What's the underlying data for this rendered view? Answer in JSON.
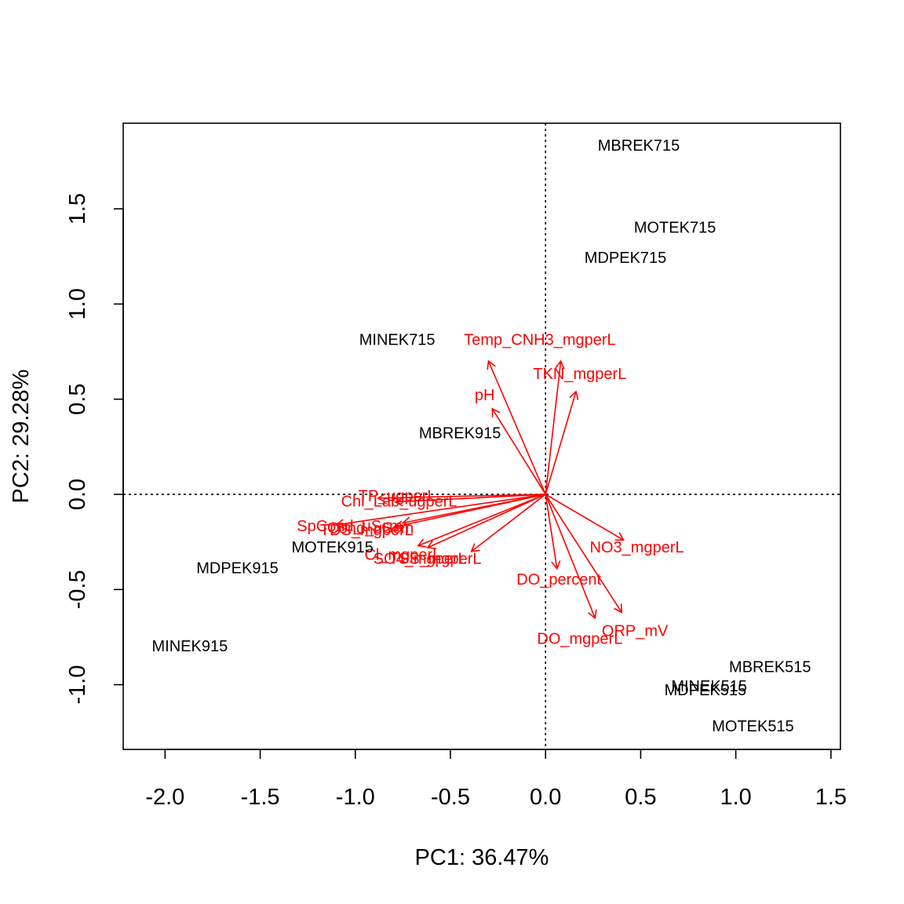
{
  "chart_data": {
    "type": "scatter",
    "subtype": "pca-biplot",
    "title": "",
    "xlabel": "PC1: 36.47%",
    "ylabel": "PC2: 29.28%",
    "xlim": [
      -2.22,
      1.55
    ],
    "ylim": [
      -1.34,
      1.95
    ],
    "x_ticks": [
      {
        "value": -2.0,
        "label": "-2.0"
      },
      {
        "value": -1.5,
        "label": "-1.5"
      },
      {
        "value": -1.0,
        "label": "-1.0"
      },
      {
        "value": -0.5,
        "label": "-0.5"
      },
      {
        "value": 0.0,
        "label": "0.0"
      },
      {
        "value": 0.5,
        "label": "0.5"
      },
      {
        "value": 1.0,
        "label": "1.0"
      },
      {
        "value": 1.5,
        "label": "1.5"
      }
    ],
    "y_ticks": [
      {
        "value": -1.0,
        "label": "-1.0"
      },
      {
        "value": -0.5,
        "label": "-0.5"
      },
      {
        "value": 0.0,
        "label": "0.0"
      },
      {
        "value": 0.5,
        "label": "0.5"
      },
      {
        "value": 1.0,
        "label": "1.0"
      },
      {
        "value": 1.5,
        "label": "1.5"
      }
    ],
    "reference_lines": {
      "x": 0.0,
      "y": 0.0,
      "style": "dotted"
    },
    "grid": false,
    "observations": [
      {
        "name": "MBREK715",
        "x": 0.49,
        "y": 1.83
      },
      {
        "name": "MOTEK715",
        "x": 0.68,
        "y": 1.4
      },
      {
        "name": "MDPEK715",
        "x": 0.42,
        "y": 1.24
      },
      {
        "name": "MINEK715",
        "x": -0.78,
        "y": 0.81
      },
      {
        "name": "MBREK915",
        "x": -0.45,
        "y": 0.32
      },
      {
        "name": "MOTEK915",
        "x": -1.12,
        "y": -0.28
      },
      {
        "name": "MDPEK915",
        "x": -1.62,
        "y": -0.39
      },
      {
        "name": "MINEK915",
        "x": -1.87,
        "y": -0.8
      },
      {
        "name": "MBREK515",
        "x": 1.18,
        "y": -0.91
      },
      {
        "name": "MINEK515",
        "x": 0.86,
        "y": -1.01
      },
      {
        "name": "MDPEK515",
        "x": 0.84,
        "y": -1.03
      },
      {
        "name": "MOTEK515",
        "x": 1.09,
        "y": -1.22
      }
    ],
    "loadings": [
      {
        "name": "Temp_C",
        "x": -0.3,
        "y": 0.7
      },
      {
        "name": "NH3_mgperL",
        "x": 0.08,
        "y": 0.7
      },
      {
        "name": "TKN_mgperL",
        "x": 0.16,
        "y": 0.54
      },
      {
        "name": "pH",
        "x": -0.28,
        "y": 0.45
      },
      {
        "name": "TP_ugperL",
        "x": -0.88,
        "y": -0.02
      },
      {
        "name": "Chl_Lab_ugperL",
        "x": -0.79,
        "y": -0.04
      },
      {
        "name": "SpCond_uScm",
        "x": -1.1,
        "y": -0.16
      },
      {
        "name": "Cond_uScm",
        "x": -0.75,
        "y": -0.15
      },
      {
        "name": "TDS_mgperL",
        "x": -0.79,
        "y": -0.17
      },
      {
        "name": "Cl_mgperL",
        "x": -0.67,
        "y": -0.27
      },
      {
        "name": "SO4_mgperL",
        "x": -0.62,
        "y": -0.28
      },
      {
        "name": "TSS_mgperL",
        "x": -0.39,
        "y": -0.3
      },
      {
        "name": "NO3_mgperL",
        "x": 0.41,
        "y": -0.24
      },
      {
        "name": "DO_percent",
        "x": 0.06,
        "y": -0.39
      },
      {
        "name": "DO_mgperL",
        "x": 0.26,
        "y": -0.65
      },
      {
        "name": "ORP_mV",
        "x": 0.4,
        "y": -0.62
      }
    ],
    "loading_label_text": [
      {
        "text": "Temp_CNH3_mgperL",
        "x": -0.03,
        "y": 0.81
      },
      {
        "text": "TKN_mgperL",
        "x": 0.18,
        "y": 0.63
      },
      {
        "text": "pH",
        "x": -0.32,
        "y": 0.52
      },
      {
        "text": "TP_ugperL",
        "x": -0.78,
        "y": -0.01
      },
      {
        "text": "Chl_Lab_ugperL",
        "x": -0.77,
        "y": -0.04
      },
      {
        "text": "SpCond_uScm",
        "x": -1.03,
        "y": -0.17
      },
      {
        "text": "Cond_uScm",
        "x": -0.92,
        "y": -0.18
      },
      {
        "text": "TDS_mgperL",
        "x": -0.94,
        "y": -0.19
      },
      {
        "text": "Cl_mgperL",
        "x": -0.75,
        "y": -0.32
      },
      {
        "text": "SO4_mgperL",
        "x": -0.66,
        "y": -0.34
      },
      {
        "text": "TSS_mgperL",
        "x": -0.58,
        "y": -0.34
      },
      {
        "text": "NO3_mgperL",
        "x": 0.48,
        "y": -0.28
      },
      {
        "text": "DO_percent",
        "x": 0.07,
        "y": -0.45
      },
      {
        "text": "DO_mgperL",
        "x": 0.18,
        "y": -0.76
      },
      {
        "text": "ORP_mV",
        "x": 0.47,
        "y": -0.72
      }
    ],
    "colors": {
      "observations": "#000000",
      "loadings": "#ff0000",
      "axes": "#000000"
    }
  }
}
